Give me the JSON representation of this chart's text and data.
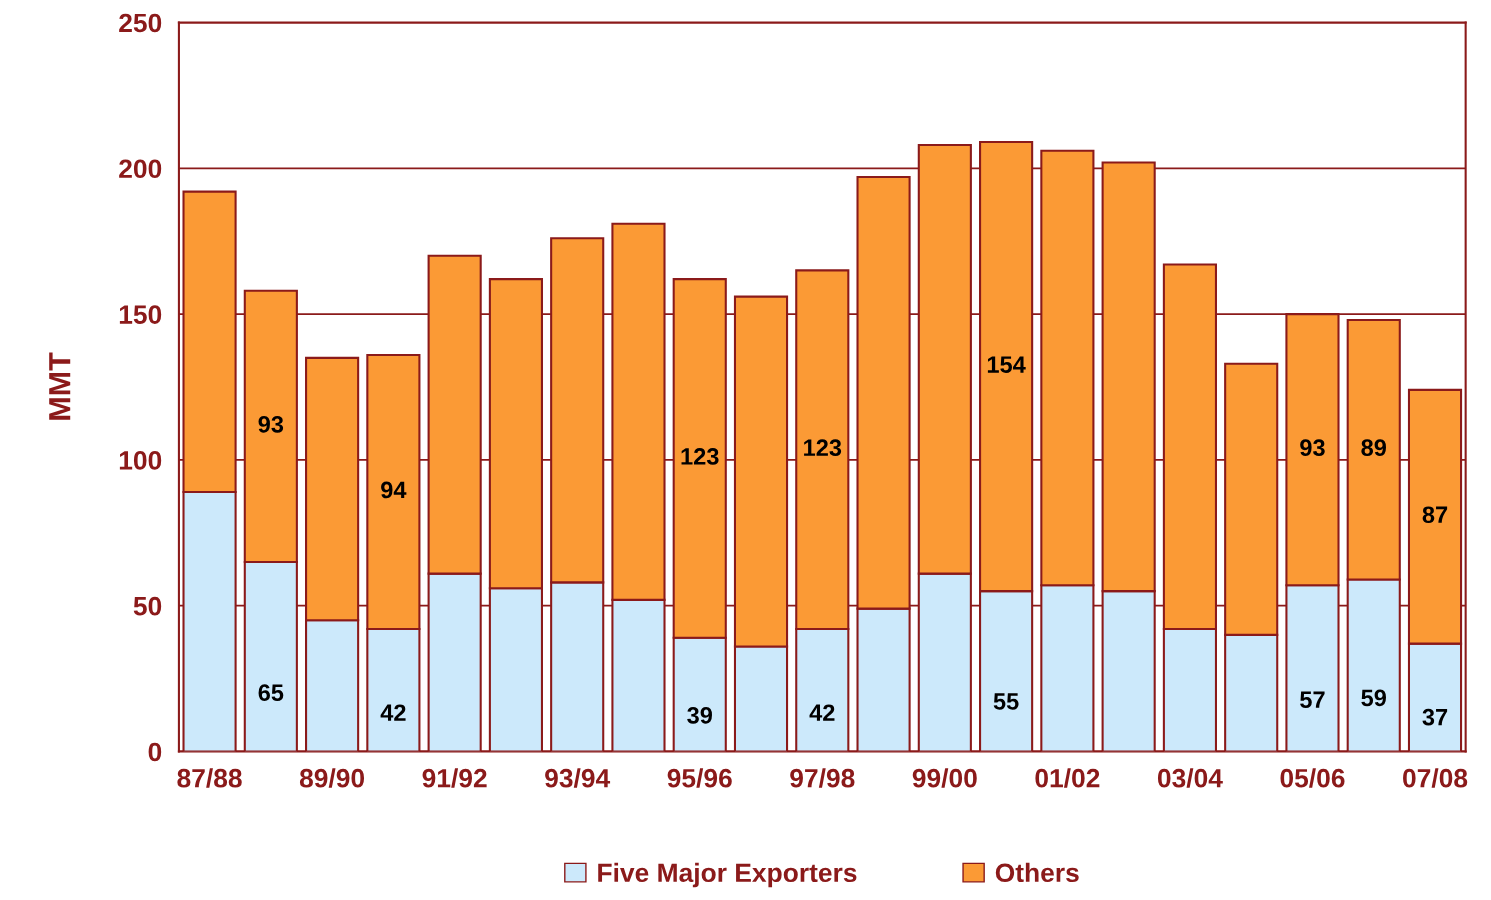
{
  "chart_data": {
    "type": "bar",
    "stacked": true,
    "ylabel": "MMT",
    "categories": [
      "87/88",
      null,
      "89/90",
      null,
      "91/92",
      null,
      "93/94",
      null,
      "95/96",
      null,
      "97/98",
      null,
      "99/00",
      null,
      "01/02",
      null,
      "03/04",
      null,
      "05/06",
      null,
      "07/08"
    ],
    "series": [
      {
        "name": "Five Major Exporters",
        "color": "#cce9fb",
        "values": [
          89,
          65,
          45,
          42,
          61,
          56,
          58,
          52,
          39,
          36,
          42,
          49,
          61,
          55,
          57,
          55,
          42,
          40,
          57,
          59,
          37
        ],
        "value_labels": [
          null,
          "65",
          null,
          "42",
          null,
          null,
          null,
          null,
          "39",
          null,
          "42",
          null,
          null,
          "55",
          null,
          null,
          null,
          null,
          "57",
          "59",
          "37"
        ]
      },
      {
        "name": "Others",
        "color": "#fb9a35",
        "values": [
          103,
          93,
          90,
          94,
          109,
          106,
          118,
          129,
          123,
          120,
          123,
          148,
          147,
          154,
          149,
          147,
          125,
          93,
          93,
          89,
          87
        ],
        "value_labels": [
          null,
          "93",
          null,
          "94",
          null,
          null,
          null,
          null,
          "123",
          null,
          "123",
          null,
          null,
          "154",
          null,
          null,
          null,
          null,
          "93",
          "89",
          "87"
        ]
      }
    ],
    "ylim": [
      0,
      250
    ],
    "yticks": [
      0,
      50,
      100,
      150,
      200,
      250
    ],
    "grid": "y",
    "legend": "bottom"
  }
}
